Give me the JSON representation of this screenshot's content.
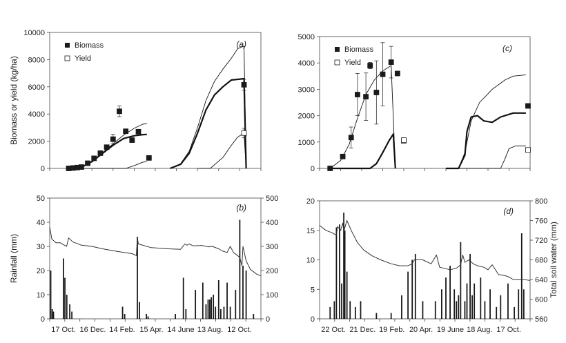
{
  "chart_data": [
    {
      "panel": "(a)",
      "type": "line",
      "ylabel": "Biomass or yield (kg/ha)",
      "xlim": [
        0,
        100
      ],
      "ylim": [
        0,
        10000
      ],
      "yticks": [
        0,
        2000,
        4000,
        6000,
        8000,
        10000
      ],
      "legend": {
        "placement": "top-left",
        "entries": [
          "Biomass",
          "Yield"
        ]
      },
      "series": [
        {
          "name": "Biomass",
          "style": "filled-square",
          "x": [
            9,
            11,
            13,
            15,
            18,
            21,
            24,
            27,
            30,
            33,
            36,
            39,
            42,
            47,
            92
          ],
          "y": [
            0,
            30,
            60,
            100,
            380,
            740,
            1120,
            1560,
            2150,
            4200,
            2730,
            2080,
            2700,
            770,
            6150
          ],
          "err": [
            0,
            0,
            0,
            0,
            0,
            0,
            0,
            0,
            350,
            400,
            0,
            0,
            0,
            0,
            400
          ]
        },
        {
          "name": "Yield",
          "style": "open-square",
          "x": [
            92
          ],
          "y": [
            2600
          ],
          "err": [
            350
          ]
        },
        {
          "name": "simulated biomass (bold)",
          "style": "thick-line",
          "x": [
            9,
            15,
            20,
            25,
            30,
            35,
            40,
            44,
            46,
            null,
            57,
            62,
            66,
            70,
            74,
            78,
            82,
            86,
            89,
            92,
            93
          ],
          "y": [
            0,
            80,
            500,
            1100,
            1700,
            2200,
            2400,
            2480,
            2500,
            null,
            0,
            300,
            1100,
            2600,
            4300,
            5400,
            6000,
            6500,
            6550,
            6600,
            0
          ]
        },
        {
          "name": "simulated (upper thin)",
          "style": "thin-line",
          "x": [
            9,
            15,
            20,
            25,
            30,
            35,
            40,
            44,
            46,
            null,
            57,
            62,
            66,
            70,
            74,
            78,
            82,
            86,
            89,
            92,
            93
          ],
          "y": [
            0,
            80,
            520,
            1150,
            1800,
            2450,
            2950,
            3250,
            3300,
            null,
            0,
            350,
            1250,
            3000,
            5000,
            6400,
            7300,
            8100,
            8800,
            9000,
            0
          ]
        },
        {
          "name": "simulated yield (thin)",
          "style": "thin-line",
          "x": [
            9,
            30,
            36,
            40,
            44,
            46,
            null,
            70,
            76,
            82,
            86,
            89,
            92,
            93
          ],
          "y": [
            0,
            0,
            0,
            200,
            450,
            500,
            null,
            0,
            0,
            800,
            1700,
            2300,
            2600,
            0
          ]
        }
      ]
    },
    {
      "panel": "(c)",
      "type": "line",
      "xlim": [
        0,
        100
      ],
      "ylim": [
        0,
        5000
      ],
      "yticks": [
        0,
        1000,
        2000,
        3000,
        4000,
        5000
      ],
      "legend": {
        "placement": "top-left",
        "entries": [
          "Biomass",
          "Yield"
        ]
      },
      "series": [
        {
          "name": "Biomass",
          "style": "filled-square",
          "x": [
            5,
            11,
            15,
            18,
            22,
            24,
            27,
            30,
            34,
            37,
            40,
            99
          ],
          "y": [
            0,
            450,
            1170,
            2800,
            2720,
            3900,
            2880,
            3570,
            4030,
            3600,
            1050,
            2370
          ],
          "err": [
            0,
            0,
            400,
            800,
            900,
            120,
            1200,
            1200,
            600,
            0,
            0,
            0
          ]
        },
        {
          "name": "Yield",
          "style": "open-square",
          "x": [
            40,
            99
          ],
          "y": [
            1070,
            700
          ],
          "err": [
            80,
            0
          ]
        },
        {
          "name": "simulated biomass (bold)",
          "style": "thick-line",
          "x": [
            5,
            24,
            27,
            30,
            33,
            35,
            36,
            null,
            60,
            66,
            69,
            70,
            72,
            75,
            78,
            82,
            86,
            92,
            98
          ],
          "y": [
            0,
            0,
            180,
            600,
            1050,
            1300,
            0,
            null,
            0,
            0,
            500,
            1400,
            1950,
            2000,
            1800,
            1750,
            1950,
            2100,
            2100
          ]
        },
        {
          "name": "simulated (upper thin)",
          "style": "thin-line",
          "x": [
            5,
            10,
            14,
            18,
            22,
            26,
            30,
            34,
            36,
            null,
            60,
            66,
            69,
            72,
            76,
            82,
            88,
            92,
            98
          ],
          "y": [
            0,
            300,
            900,
            1900,
            2800,
            3350,
            3700,
            3900,
            0,
            null,
            0,
            0,
            600,
            1800,
            2500,
            3000,
            3350,
            3500,
            3550
          ]
        },
        {
          "name": "simulated yield (thin)",
          "style": "thin-line",
          "x": [
            60,
            86,
            88,
            90,
            93,
            98
          ],
          "y": [
            0,
            0,
            350,
            750,
            850,
            850
          ]
        }
      ]
    },
    {
      "panel": "(b)",
      "type": "bar",
      "ylabel": "Rainfall (mm)",
      "ylim": [
        0,
        50
      ],
      "yticks": [
        0,
        10,
        20,
        30,
        40,
        50
      ],
      "y2lim": [
        0,
        500
      ],
      "y2ticks": [
        0,
        100,
        200,
        300,
        400,
        500
      ],
      "xticklabels": [
        "17 Oct.",
        "16 Dec.",
        "14 Feb.",
        "15 Apr.",
        "14 June",
        "13 Aug.",
        "12 Oct."
      ],
      "rain": {
        "x": [
          0.5,
          1.2,
          1.8,
          6.5,
          7.2,
          8.1,
          9.5,
          10.5,
          34.5,
          35.5,
          41.5,
          42.5,
          45.8,
          46.6,
          59.5,
          63.3,
          64.5,
          69,
          72.5,
          74,
          75,
          75.8,
          76.5,
          77.5,
          78.5,
          80,
          81,
          82.5,
          84,
          85.5,
          88,
          90,
          91.5,
          93,
          96.5
        ],
        "y": [
          20,
          4,
          3,
          25,
          17,
          10,
          6,
          3,
          5,
          2,
          34,
          7,
          2,
          1,
          2,
          17,
          4,
          12,
          15,
          6,
          8,
          8,
          9,
          10,
          5,
          16,
          4,
          5,
          15,
          5,
          12,
          41,
          22,
          20,
          2
        ]
      },
      "soil_water": {
        "x": [
          0,
          1,
          3,
          5,
          7,
          8,
          9,
          11,
          13,
          15,
          20,
          25,
          30,
          35,
          39,
          41,
          41.5,
          42,
          48,
          56,
          62,
          64,
          65,
          66,
          68,
          72,
          75,
          77,
          80,
          82,
          84,
          85.5,
          87,
          90,
          91,
          91.5,
          93,
          95,
          98,
          100
        ],
        "y": [
          380,
          330,
          315,
          315,
          305,
          300,
          335,
          318,
          312,
          305,
          300,
          290,
          282,
          275,
          270,
          262,
          335,
          310,
          295,
          290,
          288,
          310,
          305,
          310,
          302,
          304,
          298,
          300,
          290,
          280,
          275,
          300,
          275,
          255,
          220,
          300,
          240,
          205,
          185,
          178
        ]
      }
    },
    {
      "panel": "(d)",
      "type": "bar",
      "y2label": "Total soil water (mm)",
      "ylim": [
        0,
        20
      ],
      "yticks": [
        0,
        5,
        10,
        15,
        20
      ],
      "y2lim": [
        560,
        800
      ],
      "y2ticks": [
        560,
        600,
        640,
        680,
        720,
        760,
        800
      ],
      "xticklabels": [
        "22 Oct.",
        "21 Dec.",
        "19 Feb.",
        "20 Apr.",
        "19 June",
        "18 Aug.",
        "17 Oct."
      ],
      "rain": {
        "x": [
          5,
          7,
          8,
          9.5,
          10.5,
          11.5,
          12,
          13,
          14.5,
          17,
          19.5,
          27,
          34,
          39,
          42,
          44,
          45.5,
          49,
          55,
          58,
          60,
          62,
          64,
          65,
          66,
          67,
          69,
          70,
          71.5,
          72.5,
          73.5,
          76.5,
          78.5,
          81,
          84,
          86,
          89.5,
          92.5,
          94.5,
          96,
          97
        ],
        "y": [
          2,
          3,
          15.5,
          16,
          6,
          18,
          15,
          8,
          3,
          2,
          3,
          1,
          1,
          4,
          8,
          10,
          11,
          3,
          3,
          5,
          7,
          9,
          5,
          3,
          4,
          13,
          3,
          6,
          11,
          4,
          6,
          7,
          3,
          5,
          2,
          4,
          6,
          2,
          5,
          14.5,
          5
        ]
      },
      "soil_water": {
        "x": [
          0,
          3,
          6,
          8,
          8.5,
          10,
          11,
          11.5,
          13,
          15,
          18,
          21,
          25,
          29,
          34,
          38,
          42,
          44,
          45,
          49,
          53,
          55.5,
          57,
          62,
          65,
          67,
          68,
          69,
          71,
          73,
          75,
          78,
          80,
          82,
          85,
          88,
          90,
          92,
          95,
          97,
          100
        ],
        "y": [
          750,
          740,
          735,
          730,
          748,
          740,
          755,
          738,
          760,
          740,
          715,
          700,
          688,
          680,
          672,
          668,
          668,
          672,
          680,
          680,
          672,
          690,
          665,
          660,
          663,
          670,
          690,
          675,
          680,
          672,
          668,
          665,
          660,
          670,
          650,
          648,
          645,
          640,
          640,
          640,
          638
        ]
      }
    }
  ]
}
